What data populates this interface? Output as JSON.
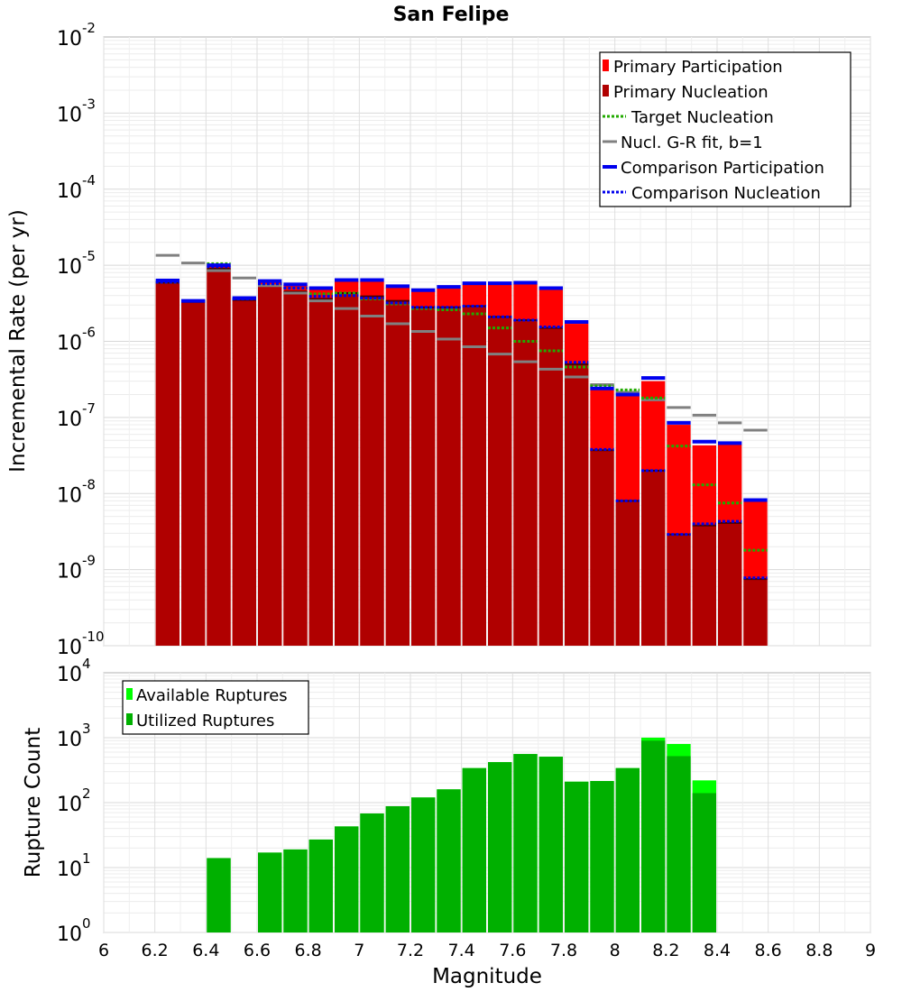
{
  "title": "San Felipe",
  "colors": {
    "primary_participation": "#ff0000",
    "primary_nucleation": "#b00000",
    "target_nucleation": "#22aa00",
    "gr_fit": "#808080",
    "comparison": "#0000ee",
    "nucl_tick": "#4a0000",
    "available": "#00ff00",
    "utilized": "#00b000"
  },
  "chart_data": [
    {
      "type": "bar",
      "panel": "top",
      "xlabel": "Magnitude",
      "ylabel": "Incremental Rate (per yr)",
      "xlim": [
        6,
        9
      ],
      "ylim": [
        1e-10,
        0.01
      ],
      "yscale": "log",
      "ytick_exponents": [
        "-10",
        "-9",
        "-8",
        "-7",
        "-6",
        "-5",
        "-4",
        "-3",
        "-2"
      ],
      "ytick_base": "10",
      "grid": true,
      "legend_position": "top-right",
      "legend": [
        "Primary Participation",
        "Primary Nucleation",
        "Target Nucleation",
        "Nucl. G-R fit, b=1",
        "Comparison Participation",
        "Comparison Nucleation"
      ],
      "bin_width": 0.1,
      "x": [
        6.25,
        6.35,
        6.45,
        6.55,
        6.65,
        6.75,
        6.85,
        6.95,
        7.05,
        7.15,
        7.25,
        7.35,
        7.45,
        7.55,
        7.65,
        7.75,
        7.85,
        7.95,
        8.05,
        8.15,
        8.25,
        8.35,
        8.45,
        8.55
      ],
      "series": [
        {
          "name": "Primary Participation",
          "values": [
            6.2e-06,
            3.3e-06,
            1e-05,
            3.6e-06,
            6e-06,
            5.5e-06,
            4.8e-06,
            6.2e-06,
            6.2e-06,
            5.1e-06,
            4.6e-06,
            5e-06,
            5.6e-06,
            5.6e-06,
            5.7e-06,
            4.8e-06,
            1.7e-06,
            2.3e-07,
            1.9e-07,
            3e-07,
            8e-08,
            4.3e-08,
            4.4e-08,
            7.8e-09
          ]
        },
        {
          "name": "Primary Nucleation",
          "values": [
            5.9e-06,
            3.3e-06,
            9e-06,
            3.5e-06,
            5.5e-06,
            4.5e-06,
            3.6e-06,
            4.3e-06,
            3.9e-06,
            3.4e-06,
            2.8e-06,
            2.8e-06,
            2.9e-06,
            2.1e-06,
            1.9e-06,
            1.5e-06,
            5e-07,
            3.7e-08,
            8e-09,
            2e-08,
            2.9e-09,
            3.8e-09,
            4.1e-09,
            7.5e-10
          ]
        },
        {
          "name": "Target Nucleation",
          "values": [
            6e-06,
            3.4e-06,
            1.05e-05,
            3.6e-06,
            5.8e-06,
            5e-06,
            4.2e-06,
            4.3e-06,
            3.6e-06,
            3.1e-06,
            2.7e-06,
            2.6e-06,
            2.3e-06,
            1.5e-06,
            1e-06,
            7.5e-07,
            4.6e-07,
            2.6e-07,
            2.3e-07,
            1.8e-07,
            4.2e-08,
            1.3e-08,
            7.5e-09,
            1.8e-09
          ]
        },
        {
          "name": "Nucl. G-R fit, b=1",
          "values": [
            1.35e-05,
            1.07e-05,
            8.5e-06,
            6.8e-06,
            5.4e-06,
            4.3e-06,
            3.4e-06,
            2.7e-06,
            2.15e-06,
            1.7e-06,
            1.35e-06,
            1.07e-06,
            8.5e-07,
            6.8e-07,
            5.4e-07,
            4.3e-07,
            3.4e-07,
            2.7e-07,
            2.15e-07,
            1.7e-07,
            1.35e-07,
            1.07e-07,
            8.5e-08,
            6.8e-08
          ]
        },
        {
          "name": "Comparison Participation",
          "values": [
            6.3e-06,
            3.4e-06,
            1e-05,
            3.7e-06,
            6.2e-06,
            5.6e-06,
            5e-06,
            6.4e-06,
            6.4e-06,
            5.3e-06,
            4.7e-06,
            5.2e-06,
            5.8e-06,
            5.8e-06,
            5.9e-06,
            5e-06,
            1.8e-06,
            2.4e-07,
            2e-07,
            3.3e-07,
            8.5e-08,
            4.8e-08,
            4.6e-08,
            8.2e-09
          ]
        },
        {
          "name": "Comparison Nucleation",
          "values": [
            6e-06,
            3.4e-06,
            9.6e-06,
            3.6e-06,
            5.7e-06,
            5e-06,
            3.9e-06,
            4e-06,
            3.7e-06,
            3.2e-06,
            2.8e-06,
            2.8e-06,
            2.9e-06,
            2.1e-06,
            1.9e-06,
            1.55e-06,
            5.3e-07,
            3.8e-08,
            8e-09,
            2e-08,
            2.9e-09,
            4e-09,
            4.3e-09,
            7.8e-10
          ]
        }
      ]
    },
    {
      "type": "bar",
      "panel": "bottom",
      "xlabel": "Magnitude",
      "ylabel": "Rupture Count",
      "xlim": [
        6,
        9
      ],
      "ylim": [
        1,
        10000
      ],
      "yscale": "log",
      "ytick_exponents": [
        "0",
        "1",
        "2",
        "3",
        "4"
      ],
      "ytick_base": "10",
      "xticks": [
        "6",
        "6.2",
        "6.4",
        "6.6",
        "6.8",
        "7",
        "7.2",
        "7.4",
        "7.6",
        "7.8",
        "8",
        "8.2",
        "8.4",
        "8.6",
        "8.8",
        "9"
      ],
      "grid": true,
      "legend_position": "top-left",
      "legend": [
        "Available Ruptures",
        "Utilized Ruptures"
      ],
      "bin_width": 0.1,
      "x": [
        6.45,
        6.65,
        6.75,
        6.85,
        6.95,
        7.05,
        7.15,
        7.25,
        7.35,
        7.45,
        7.55,
        7.65,
        7.75,
        7.85,
        7.95,
        8.05,
        8.15,
        8.25,
        8.35
      ],
      "series": [
        {
          "name": "Available Ruptures",
          "values": [
            14,
            17,
            19,
            27,
            43,
            68,
            88,
            120,
            160,
            340,
            420,
            560,
            510,
            210,
            215,
            340,
            1000,
            800,
            220
          ]
        },
        {
          "name": "Utilized Ruptures",
          "values": [
            14,
            17,
            19,
            27,
            43,
            68,
            88,
            120,
            160,
            340,
            420,
            560,
            510,
            210,
            215,
            340,
            900,
            520,
            140
          ]
        }
      ]
    }
  ]
}
